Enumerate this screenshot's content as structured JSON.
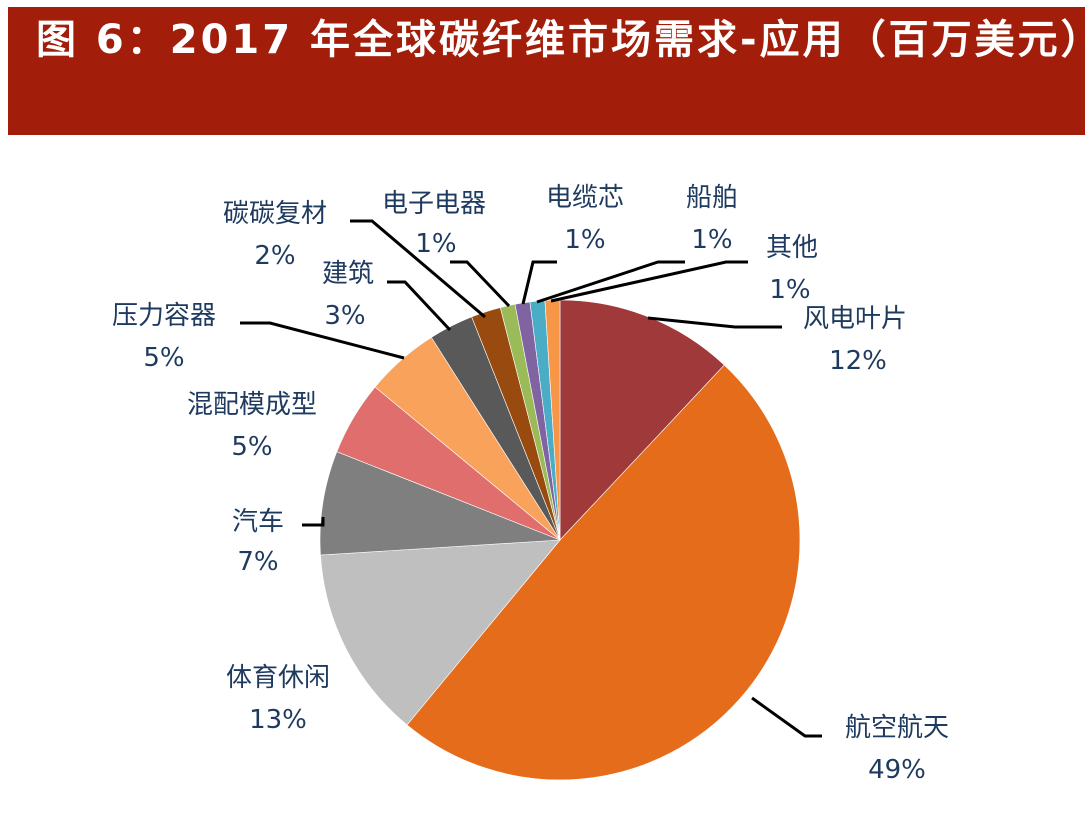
{
  "figure": {
    "title": "图 6：2017 年全球碳纤维市场需求-应用（百万美元）",
    "banner_color": "#A21E0A"
  },
  "chart_data": {
    "type": "pie",
    "title": "2017 年全球碳纤维市场需求-应用（百万美元）",
    "start_angle_deg": 0,
    "direction": "clockwise",
    "legend": "none (data labels with leader lines)",
    "categories": [
      "风电叶片",
      "航空航天",
      "体育休闲",
      "汽车",
      "混配模成型",
      "压力容器",
      "建筑",
      "碳碳复材",
      "电子电器",
      "电缆芯",
      "船舶",
      "其他"
    ],
    "values": [
      12,
      49,
      13,
      7,
      5,
      5,
      3,
      2,
      1,
      1,
      1,
      1
    ],
    "value_labels": [
      "12%",
      "49%",
      "13%",
      "7%",
      "5%",
      "5%",
      "3%",
      "2%",
      "1%",
      "1%",
      "1%",
      "1%"
    ],
    "colors": [
      "#A0393A",
      "#E46C1A",
      "#BFBFBF",
      "#7F7F7F",
      "#E06E6C",
      "#F8A25C",
      "#595959",
      "#984A0F",
      "#9BBB59",
      "#8064A2",
      "#4BACC6",
      "#F79646"
    ],
    "unit": "%"
  },
  "labels": [
    {
      "name": "风电叶片",
      "pct": "12%"
    },
    {
      "name": "航空航天",
      "pct": "49%"
    },
    {
      "name": "体育休闲",
      "pct": "13%"
    },
    {
      "name": "汽车",
      "pct": "7%"
    },
    {
      "name": "混配模成型",
      "pct": "5%"
    },
    {
      "name": "压力容器",
      "pct": "5%"
    },
    {
      "name": "建筑",
      "pct": "3%"
    },
    {
      "name": "碳碳复材",
      "pct": "2%"
    },
    {
      "name": "电子电器",
      "pct": "1%"
    },
    {
      "name": "电缆芯",
      "pct": "1%"
    },
    {
      "name": "船舶",
      "pct": "1%"
    },
    {
      "name": "其他",
      "pct": "1%"
    }
  ]
}
